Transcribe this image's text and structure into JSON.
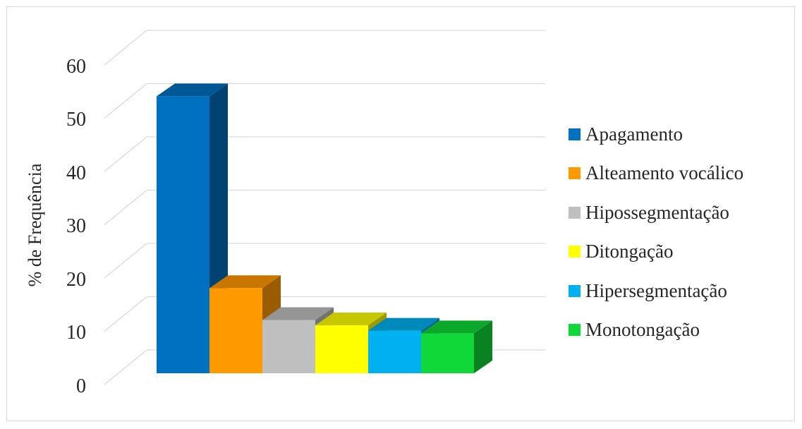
{
  "chart_data": {
    "type": "bar",
    "style": "3d-clustered-column",
    "ylabel": "% de Frequência",
    "ylim": [
      0,
      60
    ],
    "yticks": [
      "0",
      "10",
      "20",
      "30",
      "40",
      "50",
      "60"
    ],
    "grid": true,
    "legend": "right",
    "series": [
      {
        "name": "Apagamento",
        "values": [
          52
        ],
        "color": "#0070c0"
      },
      {
        "name": "Alteamento vocálico",
        "values": [
          16
        ],
        "color": "#ff9900"
      },
      {
        "name": "Hipossegmentação",
        "values": [
          10
        ],
        "color": "#bfbfbf"
      },
      {
        "name": "Ditongação",
        "values": [
          9
        ],
        "color": "#ffff00"
      },
      {
        "name": "Hipersegmentação",
        "values": [
          8
        ],
        "color": "#00b0f0"
      },
      {
        "name": "Monotongação",
        "values": [
          7.5
        ],
        "color": "#10d838"
      }
    ]
  }
}
